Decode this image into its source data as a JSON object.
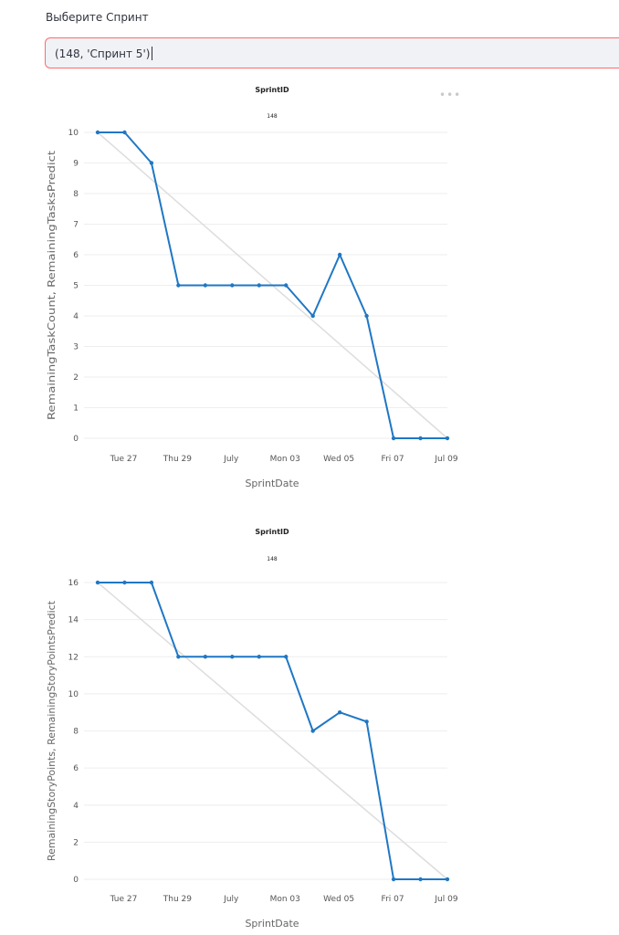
{
  "select": {
    "label": "Выберите Спринт",
    "value": "(148, 'Спринт 5')"
  },
  "menu_icon": "more-horizontal-icon",
  "colors": {
    "line": "#1f77c4",
    "predict": "#dddddd",
    "grid": "#eeeeee",
    "select_border": "#ff6b6b",
    "select_bg": "#f0f2f6"
  },
  "chart_data": [
    {
      "type": "line",
      "title": "SprintID",
      "subtitle": "148",
      "xlabel": "SprintDate",
      "ylabel": "RemainingTaskCount, RemainingTasksPredict",
      "x_ticks": [
        {
          "date": "2023-06-27",
          "label": "Tue 27"
        },
        {
          "date": "2023-06-29",
          "label": "Thu 29"
        },
        {
          "date": "2023-07-01",
          "label": "July"
        },
        {
          "date": "2023-07-03",
          "label": "Mon 03"
        },
        {
          "date": "2023-07-05",
          "label": "Wed 05"
        },
        {
          "date": "2023-07-07",
          "label": "Fri 07"
        },
        {
          "date": "2023-07-09",
          "label": "Jul 09"
        }
      ],
      "y_ticks": [
        0,
        1,
        2,
        3,
        4,
        5,
        6,
        7,
        8,
        9,
        10
      ],
      "ylim": [
        0,
        10
      ],
      "series": [
        {
          "name": "RemainingTaskCount",
          "x": [
            "2023-06-26",
            "2023-06-27",
            "2023-06-28",
            "2023-06-29",
            "2023-06-30",
            "2023-07-01",
            "2023-07-02",
            "2023-07-03",
            "2023-07-04",
            "2023-07-05",
            "2023-07-06",
            "2023-07-07",
            "2023-07-08",
            "2023-07-09"
          ],
          "values": [
            10,
            10,
            9,
            5,
            5,
            5,
            5,
            5,
            4,
            6,
            4,
            0,
            0,
            0
          ]
        },
        {
          "name": "RemainingTasksPredict",
          "x": [
            "2023-06-26",
            "2023-07-09"
          ],
          "values": [
            10,
            0
          ]
        }
      ]
    },
    {
      "type": "line",
      "title": "SprintID",
      "subtitle": "148",
      "xlabel": "SprintDate",
      "ylabel": "RemainingStoryPoints, RemainingStoryPointsPredict",
      "x_ticks": [
        {
          "date": "2023-06-27",
          "label": "Tue 27"
        },
        {
          "date": "2023-06-29",
          "label": "Thu 29"
        },
        {
          "date": "2023-07-01",
          "label": "July"
        },
        {
          "date": "2023-07-03",
          "label": "Mon 03"
        },
        {
          "date": "2023-07-05",
          "label": "Wed 05"
        },
        {
          "date": "2023-07-07",
          "label": "Fri 07"
        },
        {
          "date": "2023-07-09",
          "label": "Jul 09"
        }
      ],
      "y_ticks": [
        0,
        2,
        4,
        6,
        8,
        10,
        12,
        14,
        16
      ],
      "ylim": [
        0,
        16
      ],
      "series": [
        {
          "name": "RemainingStoryPoints",
          "x": [
            "2023-06-26",
            "2023-06-27",
            "2023-06-28",
            "2023-06-29",
            "2023-06-30",
            "2023-07-01",
            "2023-07-02",
            "2023-07-03",
            "2023-07-04",
            "2023-07-05",
            "2023-07-06",
            "2023-07-07",
            "2023-07-08",
            "2023-07-09"
          ],
          "values": [
            16,
            16,
            16,
            12,
            12,
            12,
            12,
            12,
            8,
            9,
            8.5,
            0,
            0,
            0
          ]
        },
        {
          "name": "RemainingStoryPointsPredict",
          "x": [
            "2023-06-26",
            "2023-07-09"
          ],
          "values": [
            16,
            0
          ]
        }
      ]
    }
  ]
}
